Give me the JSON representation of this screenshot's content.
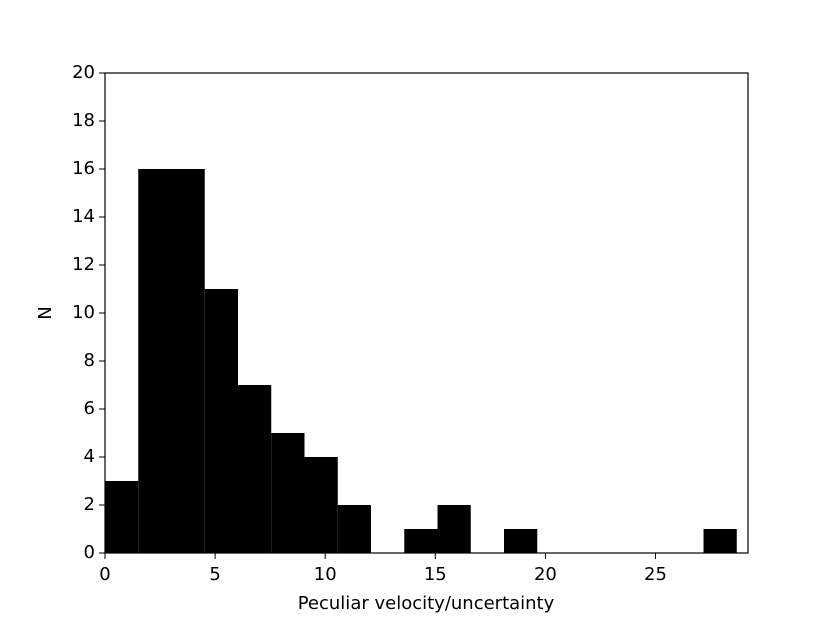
{
  "chart_data": {
    "type": "histogram",
    "x_label": "Peculiar velocity/uncertainty",
    "y_label": "N",
    "bins": [
      0,
      1.51,
      3.02,
      4.53,
      6.04,
      7.55,
      9.06,
      10.57,
      12.08,
      13.59,
      15.1,
      16.61,
      18.12,
      19.63,
      21.14,
      22.65,
      24.16,
      25.67,
      27.18,
      28.69
    ],
    "values": [
      3,
      16,
      16,
      11,
      7,
      5,
      4,
      2,
      0,
      1,
      2,
      0,
      1,
      0,
      0,
      0,
      0,
      0,
      1
    ],
    "color": "#000000",
    "xlim": [
      0,
      29.2
    ],
    "xticks": [
      0,
      5,
      10,
      15,
      20,
      25
    ],
    "ylim": [
      0,
      20
    ],
    "yticks": [
      0,
      2,
      4,
      6,
      8,
      10,
      12,
      14,
      16,
      18,
      20
    ]
  }
}
